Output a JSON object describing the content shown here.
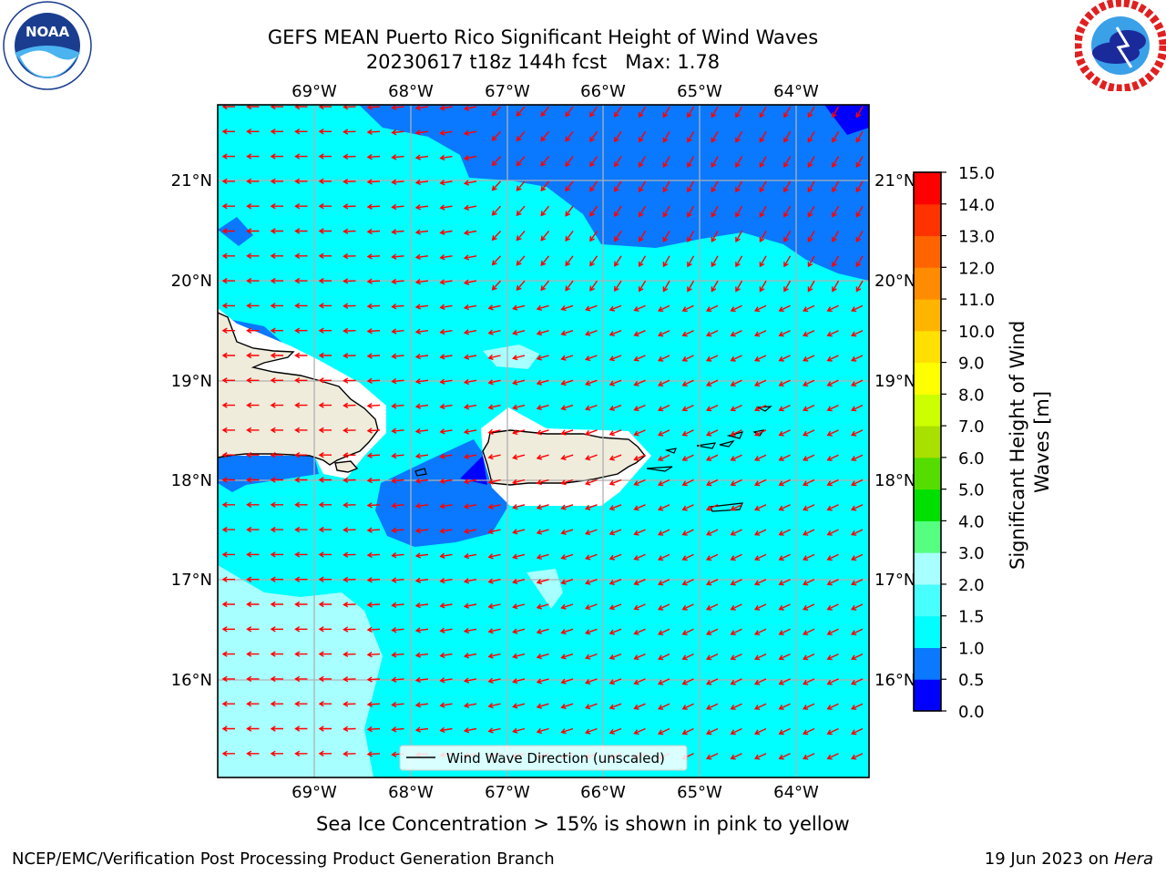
{
  "title": {
    "line1": "GEFS MEAN Puerto Rico Significant Height of Wind Waves",
    "line2": "20230617 t18z 144h fcst   Max: 1.78"
  },
  "logos": {
    "left": {
      "icon": "noaa-logo",
      "text": "NOAA",
      "ring_text": "NATIONAL OCEANIC AND ATMOSPHERIC ADMINISTRATION · U.S. DEPARTMENT OF COMMERCE"
    },
    "right": {
      "icon": "nws-logo",
      "ring_text": "NATIONAL WEATHER SERVICE"
    }
  },
  "map": {
    "longitude_labels": [
      "69°W",
      "68°W",
      "67°W",
      "66°W",
      "65°W",
      "64°W"
    ],
    "latitude_labels": [
      "21°N",
      "20°N",
      "19°N",
      "18°N",
      "17°N",
      "16°N"
    ],
    "legend_label": "Wind Wave Direction (unscaled)",
    "arrow_color": "#ff0000",
    "land_color": "#efecdc",
    "note": "Sea Ice Concentration > 15% is shown in pink to yellow"
  },
  "colorbar": {
    "label": "Significant Height of Wind Waves [m]",
    "label_line1": "Significant Height of Wind",
    "label_line2": "Waves [m]",
    "ticks": [
      "0.0",
      "0.5",
      "1.0",
      "1.5",
      "2.0",
      "3.0",
      "4.0",
      "5.0",
      "6.0",
      "7.0",
      "8.0",
      "9.0",
      "10.0",
      "11.0",
      "12.0",
      "13.0",
      "14.0",
      "15.0"
    ],
    "colors": [
      "#0000ff",
      "#0a78ff",
      "#00ffff",
      "#48ffff",
      "#a8ffff",
      "#55ff80",
      "#00e000",
      "#55dd00",
      "#a8e000",
      "#ccff00",
      "#ffff00",
      "#ffe000",
      "#ffb400",
      "#ff8c00",
      "#ff6400",
      "#ff3200",
      "#ff0000"
    ]
  },
  "footer": {
    "left": "NCEP/EMC/Verification Post Processing Product Generation Branch",
    "right_date": "19 Jun 2023 on ",
    "right_host": "Hera"
  }
}
